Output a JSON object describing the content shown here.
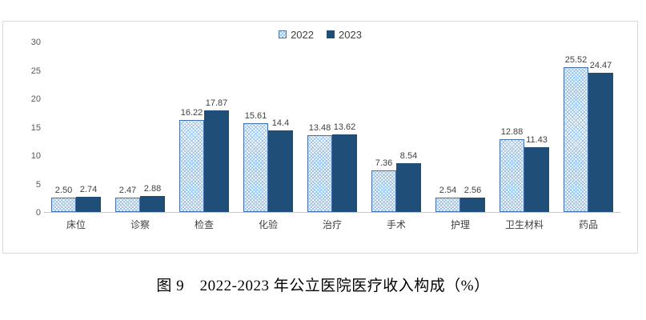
{
  "figure": {
    "caption": "图 9　2022-2023 年公立医院医疗收入构成（%）"
  },
  "chart_data": {
    "type": "bar",
    "title": "图 9　2022-2023 年公立医院医疗收入构成（%）",
    "categories": [
      "床位",
      "诊察",
      "检查",
      "化验",
      "治疗",
      "手术",
      "护理",
      "卫生材料",
      "药品"
    ],
    "series": [
      {
        "name": "2022",
        "values": [
          2.5,
          2.47,
          16.22,
          15.61,
          13.48,
          7.36,
          2.54,
          12.88,
          25.52
        ],
        "labels": [
          "2.50",
          "2.47",
          "16.22",
          "15.61",
          "13.48",
          "7.36",
          "2.54",
          "12.88",
          "25.52"
        ],
        "fill": "hatched",
        "pattern_color": "#9CC2E5",
        "border_color": "#4472AC"
      },
      {
        "name": "2023",
        "values": [
          2.74,
          2.88,
          17.87,
          14.4,
          13.62,
          8.54,
          2.56,
          11.43,
          24.47
        ],
        "labels": [
          "2.74",
          "2.88",
          "17.87",
          "14.4",
          "13.62",
          "8.54",
          "2.56",
          "11.43",
          "24.47"
        ],
        "fill": "solid",
        "color": "#1F4E79"
      }
    ],
    "xlabel": "",
    "ylabel": "",
    "ylim": [
      0,
      30
    ],
    "yticks": [
      0,
      5,
      10,
      15,
      20,
      25,
      30
    ],
    "grid": false,
    "legend_position": "top-center",
    "colors": {
      "axis_text": "#595959",
      "data_label_text": "#3F3F3F",
      "category_text": "#404040",
      "chart_border": "#D9D9D9",
      "axis_line": "#C6C6C6",
      "series_2023": "#1F4E79",
      "series_2022_pattern": "#9CC2E5",
      "series_2022_border": "#4472AC"
    }
  }
}
